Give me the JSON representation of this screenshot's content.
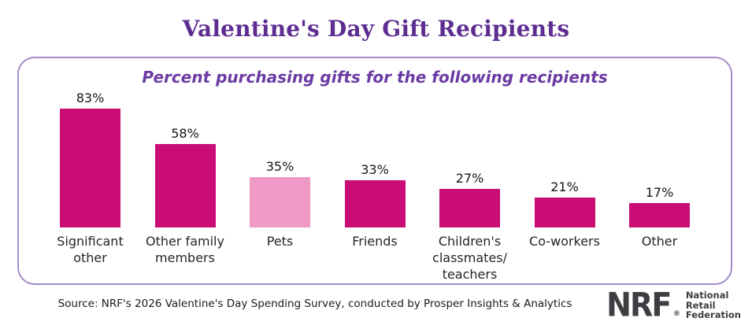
{
  "title": "Valentine's Day Gift Recipients",
  "chart_data": {
    "type": "bar",
    "title": "Percent purchasing gifts for the following recipients",
    "xlabel": "",
    "ylabel": "",
    "ylim": [
      0,
      100
    ],
    "grid": false,
    "legend": null,
    "categories": [
      "Significant other",
      "Other family members",
      "Pets",
      "Friends",
      "Children's classmates/teachers",
      "Co-workers",
      "Other"
    ],
    "values": [
      83,
      58,
      35,
      33,
      27,
      21,
      17
    ],
    "bars": [
      {
        "category": "Significant other",
        "label_lines": [
          "Significant",
          "other"
        ],
        "value": 83,
        "display": "83%",
        "color": "#C90C76"
      },
      {
        "category": "Other family members",
        "label_lines": [
          "Other family",
          "members"
        ],
        "value": 58,
        "display": "58%",
        "color": "#C90C76"
      },
      {
        "category": "Pets",
        "label_lines": [
          "Pets"
        ],
        "value": 35,
        "display": "35%",
        "color": "#EF9AC6"
      },
      {
        "category": "Friends",
        "label_lines": [
          "Friends"
        ],
        "value": 33,
        "display": "33%",
        "color": "#C90C76"
      },
      {
        "category": "Children's classmates/teachers",
        "label_lines": [
          "Children's",
          "classmates/",
          "teachers"
        ],
        "value": 27,
        "display": "27%",
        "color": "#C90C76"
      },
      {
        "category": "Co-workers",
        "label_lines": [
          "Co-workers"
        ],
        "value": 21,
        "display": "21%",
        "color": "#C90C76"
      },
      {
        "category": "Other",
        "label_lines": [
          "Other"
        ],
        "value": 17,
        "display": "17%",
        "color": "#C90C76"
      }
    ]
  },
  "footer": {
    "source": "Source: NRF's 2026 Valentine's Day Spending Survey, conducted by Prosper Insights & Analytics",
    "logo": {
      "acronym": "NRF",
      "registered": "®",
      "lines": [
        "National",
        "Retail",
        "Federation"
      ]
    }
  },
  "colors": {
    "title": "#5E2D91",
    "subtitle": "#6B3AA3",
    "panel_border": "#A38CC8",
    "bar_primary": "#C90C76",
    "bar_highlight": "#EF9AC6",
    "value_text": "#151515",
    "logo": "#3E3D42"
  }
}
